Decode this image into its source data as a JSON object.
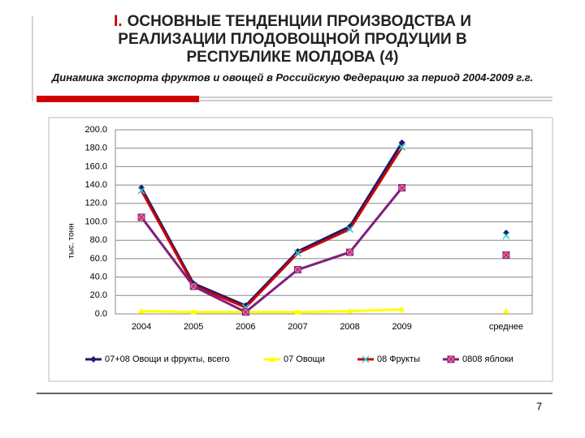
{
  "title_prefix": "I.",
  "title": "ОСНОВНЫЕ ТЕНДЕНЦИИ ПРОИЗВОДСТВА И РЕАЛИЗАЦИИ ПЛОДОВОЩНОЙ ПРОДУЦИИ В РЕСПУБЛИКЕ МОЛДОВА  (4)",
  "subtitle": "Динамика экспорта фруктов и овощей в Российскую Федерацию за период 2004-2009 г.г.",
  "page_number": "7",
  "chart_data": {
    "type": "line",
    "y_label": "тыс. тонн",
    "categories": [
      "2004",
      "2005",
      "2006",
      "2007",
      "2008",
      "2009",
      null,
      "среднее"
    ],
    "series": [
      {
        "name": "07+08 Овощи и фрукты, всего",
        "color": "#1a1a6e",
        "marker": "diamond",
        "marker_color": "#1a1a6e",
        "values": [
          137,
          33,
          9,
          68,
          95,
          186,
          null,
          88
        ]
      },
      {
        "name": "07 Овощи",
        "color": "#ffff00",
        "marker": "triangle",
        "marker_color": "#ffff00",
        "values": [
          3,
          2,
          2,
          2,
          3,
          5,
          null,
          3
        ]
      },
      {
        "name": "08 Фрукты",
        "color": "#cc0000",
        "marker": "x",
        "marker_color": "#33cccc",
        "values": [
          134,
          31,
          7,
          66,
          92,
          181,
          null,
          85
        ]
      },
      {
        "name": "0808 яблоки",
        "color": "#7f1f7f",
        "marker": "square",
        "marker_color": "#ff6f8f",
        "values": [
          105,
          30,
          2,
          48,
          67,
          137,
          null,
          64
        ]
      }
    ],
    "ylim": [
      0,
      200
    ],
    "yticks": [
      {
        "value": 0,
        "label": "0.0"
      },
      {
        "value": 20,
        "label": "20.0"
      },
      {
        "value": 40,
        "label": "40.0"
      },
      {
        "value": 60,
        "label": "60.0"
      },
      {
        "value": 80,
        "label": "80.0"
      },
      {
        "value": 100,
        "label": "100.0"
      },
      {
        "value": 120,
        "label": "120.0"
      },
      {
        "value": 140,
        "label": "140.0"
      },
      {
        "value": 160,
        "label": "160.0"
      },
      {
        "value": 180,
        "label": "180.0"
      },
      {
        "value": 200,
        "label": "200.0"
      }
    ],
    "grid": true,
    "legend": "bottom"
  }
}
